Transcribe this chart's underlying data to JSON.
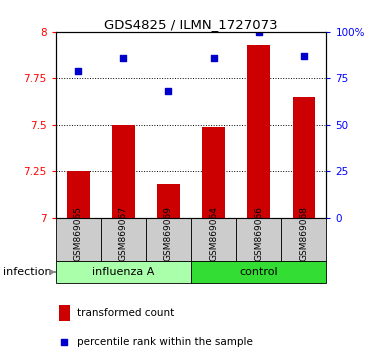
{
  "title": "GDS4825 / ILMN_1727073",
  "samples": [
    "GSM869065",
    "GSM869067",
    "GSM869069",
    "GSM869064",
    "GSM869066",
    "GSM869068"
  ],
  "groups": [
    "influenza A",
    "influenza A",
    "influenza A",
    "control",
    "control",
    "control"
  ],
  "group_labels": [
    "influenza A",
    "control"
  ],
  "group_colors": [
    "#aaffaa",
    "#33dd33"
  ],
  "bar_values": [
    7.25,
    7.5,
    7.18,
    7.49,
    7.93,
    7.65
  ],
  "bar_color": "#cc0000",
  "scatter_color": "#0000cc",
  "ylim_left": [
    7.0,
    8.0
  ],
  "ylim_right": [
    0,
    100
  ],
  "yticks_left": [
    7.0,
    7.25,
    7.5,
    7.75,
    8.0
  ],
  "ytick_labels_left": [
    "7",
    "7.25",
    "7.5",
    "7.75",
    "8"
  ],
  "yticks_right": [
    0,
    25,
    50,
    75,
    100
  ],
  "ytick_labels_right": [
    "0",
    "25",
    "50",
    "75",
    "100%"
  ],
  "grid_lines": [
    7.25,
    7.5,
    7.75
  ],
  "infection_label": "infection",
  "legend_bar_label": "transformed count",
  "legend_scatter_label": "percentile rank within the sample",
  "bar_bottom": 7.0,
  "scatter_percent": [
    79,
    86,
    68,
    86,
    100,
    87
  ],
  "gray_box_color": "#cccccc",
  "bar_width": 0.5
}
